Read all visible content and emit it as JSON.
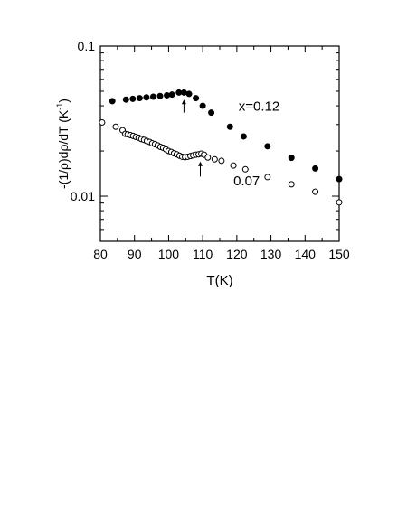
{
  "chart_data": {
    "type": "scatter",
    "x_scale": "linear",
    "y_scale": "log",
    "xlim": [
      80,
      150
    ],
    "ylim": [
      0.005,
      0.1
    ],
    "grid": false,
    "xlabel": "T(K)",
    "ylabel": {
      "main": "-(1/ρ)dρ/dT (K",
      "superscript": "-1",
      "close": ")"
    },
    "x_ticks": [
      80,
      90,
      100,
      110,
      120,
      130,
      140,
      150
    ],
    "x_tick_labels": [
      "80",
      "90",
      "100",
      "110",
      "120",
      "130",
      "140",
      "150"
    ],
    "y_ticks": [
      0.01,
      0.1
    ],
    "y_tick_labels": [
      "0.01",
      "0.1"
    ],
    "series": [
      {
        "name": "x=0.12",
        "marker": "filled-circle",
        "color": "#000000",
        "x": [
          83.5,
          87.5,
          89.5,
          91.5,
          93.5,
          95.5,
          97.5,
          99.5,
          101.0,
          103.0,
          104.5,
          106.0,
          108.0,
          110.0,
          112.5,
          118.0,
          122.0,
          129.0,
          136.0,
          143.0,
          150.0
        ],
        "y": [
          0.043,
          0.044,
          0.0445,
          0.045,
          0.0455,
          0.046,
          0.0465,
          0.047,
          0.0475,
          0.049,
          0.049,
          0.048,
          0.045,
          0.04,
          0.036,
          0.029,
          0.025,
          0.0215,
          0.018,
          0.0153,
          0.013
        ]
      },
      {
        "name": "0.07",
        "marker": "open-circle",
        "color": "#000000",
        "x": [
          80.5,
          84.5,
          86.5,
          87.3,
          88.0,
          88.8,
          89.6,
          90.4,
          91.2,
          92.0,
          92.8,
          93.6,
          94.4,
          95.2,
          96.0,
          96.8,
          97.6,
          98.4,
          99.2,
          100.0,
          100.8,
          101.6,
          102.4,
          103.2,
          104.0,
          104.8,
          105.6,
          106.4,
          107.2,
          108.0,
          108.8,
          109.6,
          110.4,
          111.5,
          113.5,
          115.5,
          119.0,
          122.5,
          129.0,
          136.0,
          143.0,
          150.0
        ],
        "y": [
          0.031,
          0.029,
          0.0275,
          0.026,
          0.0258,
          0.0255,
          0.0252,
          0.0248,
          0.0245,
          0.024,
          0.0237,
          0.0233,
          0.023,
          0.0225,
          0.0222,
          0.0218,
          0.0213,
          0.021,
          0.0205,
          0.02,
          0.0197,
          0.0193,
          0.019,
          0.0186,
          0.0183,
          0.0182,
          0.0183,
          0.0185,
          0.0187,
          0.0189,
          0.019,
          0.0192,
          0.0189,
          0.0181,
          0.0176,
          0.0172,
          0.016,
          0.0151,
          0.0134,
          0.012,
          0.0107,
          0.0091
        ]
      }
    ],
    "annotations": [
      {
        "type": "arrow",
        "series": "x=0.12",
        "x": 104.5,
        "y_tail": 0.036,
        "y_head": 0.044
      },
      {
        "type": "arrow",
        "series": "0.07",
        "x": 109.3,
        "y_tail": 0.0135,
        "y_head": 0.017
      }
    ],
    "series_labels": [
      {
        "text": "x=0.12",
        "x": 120.5,
        "y": 0.037
      },
      {
        "text": "0.07",
        "x": 119.0,
        "y": 0.0118
      }
    ]
  }
}
